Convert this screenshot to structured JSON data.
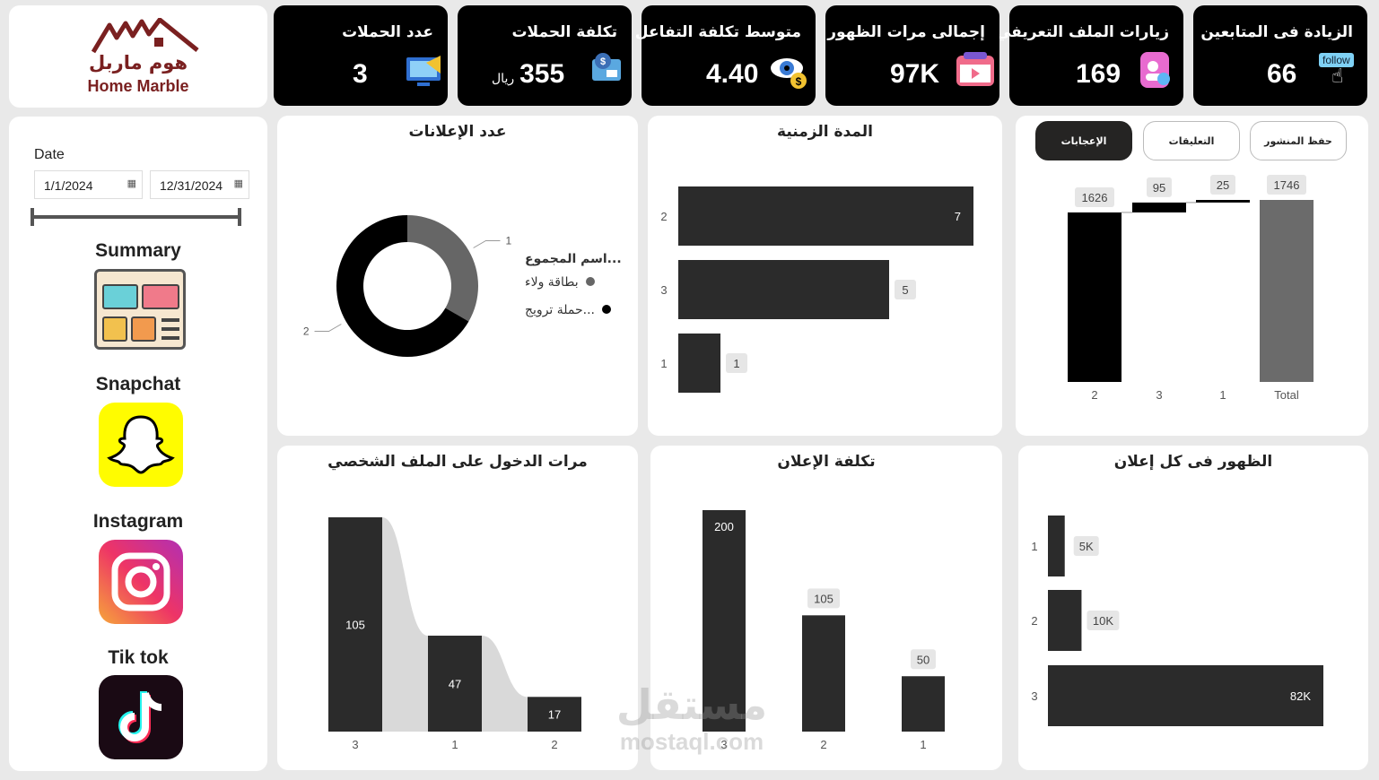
{
  "brand": {
    "arabic": "هوم ماربل",
    "english": "Home Marble"
  },
  "kpis": [
    {
      "title": "الزيادة فى المتابعين",
      "value": "66",
      "icon": "follow-icon",
      "icon_text": "follow"
    },
    {
      "title": "زيارات الملف التعريفي",
      "value": "169",
      "icon": "profile-visits-icon"
    },
    {
      "title": "إجمالى مرات الظهور",
      "value": "97K",
      "icon": "video-icon"
    },
    {
      "title": "متوسط تكلفة التفاعل",
      "value": "4.40",
      "icon": "eye-dollar-icon"
    },
    {
      "title": "تكلفة الحملات",
      "value": "355",
      "unit": "ريال",
      "icon": "money-icon"
    },
    {
      "title": "عدد الحملات",
      "value": "3",
      "icon": "ads-monitor-icon"
    }
  ],
  "sidebar": {
    "date_label": "Date",
    "date_from": "1/1/2024",
    "date_to": "12/31/2024",
    "nav": [
      {
        "label": "Summary",
        "icon": "summary-dashboard-icon"
      },
      {
        "label": "Snapchat",
        "icon": "snapchat-icon"
      },
      {
        "label": "Instagram",
        "icon": "instagram-icon"
      },
      {
        "label": "Tik tok",
        "icon": "tiktok-icon"
      }
    ]
  },
  "tabs": [
    {
      "label": "حفظ المنشور",
      "active": false
    },
    {
      "label": "التعليقات",
      "active": false
    },
    {
      "label": "الإعجابات",
      "active": true
    }
  ],
  "charts": {
    "donut_title": "عدد الإعلانات",
    "duration_title": "المدة الزمنية",
    "profile_title": "مرات الدخول على الملف الشخصي",
    "cost_title": "تكلفة الإعلان",
    "impressions_title": "الظهور فى كل إعلان"
  },
  "chart_data": [
    {
      "id": "likes-waterfall",
      "type": "bar",
      "subtype": "waterfall",
      "categories": [
        "2",
        "3",
        "1",
        "Total"
      ],
      "values": [
        1626,
        95,
        25,
        1746
      ],
      "colors": {
        "increase": "#000000",
        "total": "#6b6b6b"
      }
    },
    {
      "id": "ads-count-donut",
      "type": "pie",
      "title": "عدد الإعلانات",
      "legend_title": "...اسم المجموع",
      "categories": [
        "بطاقة ولاء",
        "...حملة ترويج"
      ],
      "values": [
        1,
        2
      ],
      "colors": [
        "#666666",
        "#000000"
      ],
      "legend": "right"
    },
    {
      "id": "duration-bars",
      "type": "bar",
      "orientation": "horizontal",
      "title": "المدة الزمنية",
      "categories": [
        "2",
        "3",
        "1"
      ],
      "values": [
        7,
        5,
        1
      ],
      "xlim": [
        0,
        7.3
      ]
    },
    {
      "id": "profile-visits-ribbon",
      "type": "bar",
      "subtype": "ribbon",
      "title": "مرات الدخول على الملف الشخصي",
      "categories": [
        "3",
        "1",
        "2"
      ],
      "values": [
        105,
        47,
        17
      ],
      "ylim": [
        0,
        105
      ]
    },
    {
      "id": "ad-cost-bars",
      "type": "bar",
      "title": "تكلفة الإعلان",
      "categories": [
        "3",
        "2",
        "1"
      ],
      "values": [
        200,
        105,
        50
      ],
      "ylim": [
        0,
        200
      ]
    },
    {
      "id": "impressions-bars",
      "type": "bar",
      "orientation": "horizontal",
      "title": "الظهور فى كل إعلان",
      "categories": [
        "1",
        "2",
        "3"
      ],
      "values": [
        5000,
        10000,
        82000
      ],
      "labels": [
        "5K",
        "10K",
        "82K"
      ],
      "xlim": [
        0,
        82000
      ]
    }
  ],
  "watermark": {
    "arabic": "مستقل",
    "latin": "mostaql.com"
  },
  "colors": {
    "bar": "#2b2b2b",
    "kpi_bg": "#000000",
    "ribbon": "#d9d9d9"
  }
}
